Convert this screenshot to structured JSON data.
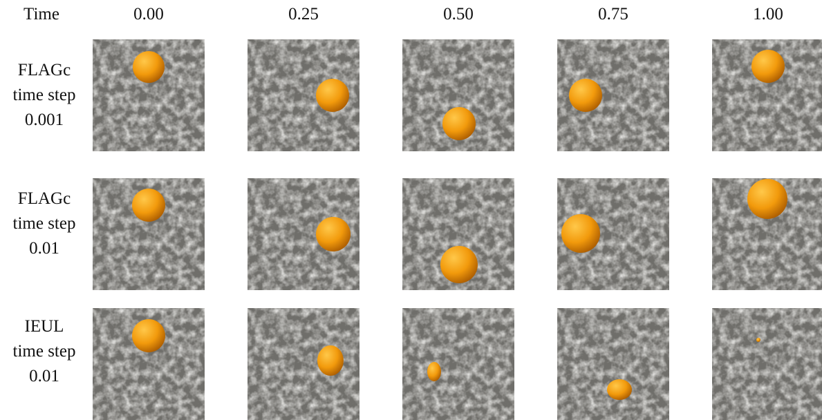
{
  "header": {
    "time_label": "Time",
    "times": [
      "0.00",
      "0.25",
      "0.50",
      "0.75",
      "1.00"
    ]
  },
  "rows": [
    {
      "lines": [
        "FLAGc",
        "time step",
        "0.001"
      ]
    },
    {
      "lines": [
        "FLAGc",
        "time step",
        "0.01"
      ]
    },
    {
      "lines": [
        "IEUL",
        "time step",
        "0.01"
      ]
    }
  ],
  "colors": {
    "surface": "#d9d8d3",
    "sphere_light": "#ffc040",
    "sphere_mid": "#f0960a",
    "sphere_dark": "#a85a00"
  }
}
